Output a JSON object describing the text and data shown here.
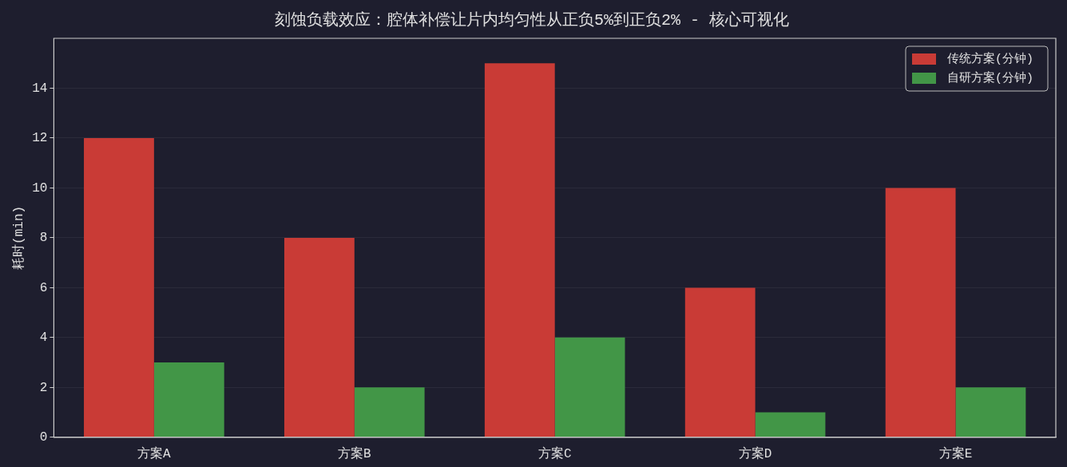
{
  "chart_data": {
    "type": "bar",
    "title": "刻蚀负载效应：腔体补偿让片内均匀性从正负5%到正负2% - 核心可视化",
    "ylabel": "耗时(min)",
    "categories": [
      "方案A",
      "方案B",
      "方案C",
      "方案D",
      "方案E"
    ],
    "series": [
      {
        "name": "传统方案(分钟)",
        "color": "#c93b36",
        "values": [
          12,
          8,
          15,
          6,
          10
        ]
      },
      {
        "name": "自研方案(分钟)",
        "color": "#429647",
        "values": [
          3,
          2,
          4,
          1,
          2
        ]
      }
    ],
    "ylim": [
      0,
      16
    ],
    "yticks": [
      0,
      2,
      4,
      6,
      8,
      10,
      12,
      14
    ],
    "grid": "y",
    "legend": "top right"
  }
}
